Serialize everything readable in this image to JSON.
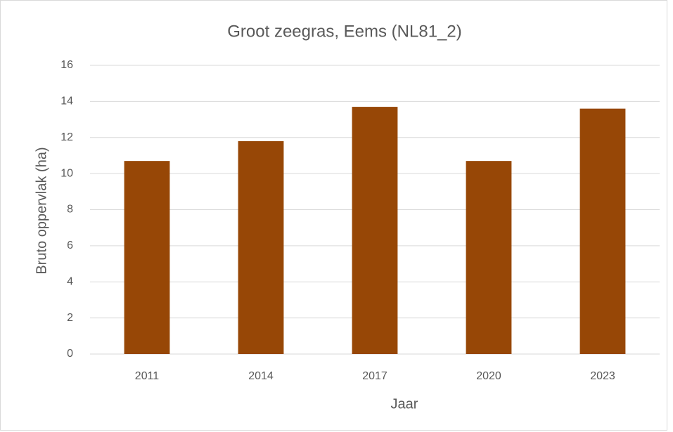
{
  "chart_data": {
    "type": "bar",
    "title": "Groot zeegras, Eems (NL81_2)",
    "x_label": "Jaar",
    "y_label": "Bruto oppervlak (ha)",
    "categories": [
      "2011",
      "2014",
      "2017",
      "2020",
      "2023"
    ],
    "values": [
      10.7,
      11.8,
      13.7,
      10.7,
      13.6
    ],
    "color": "#974706",
    "ylim": [
      0,
      16
    ],
    "yticks": [
      0,
      2,
      4,
      6,
      8,
      10,
      12,
      14,
      16
    ],
    "grid": true
  }
}
